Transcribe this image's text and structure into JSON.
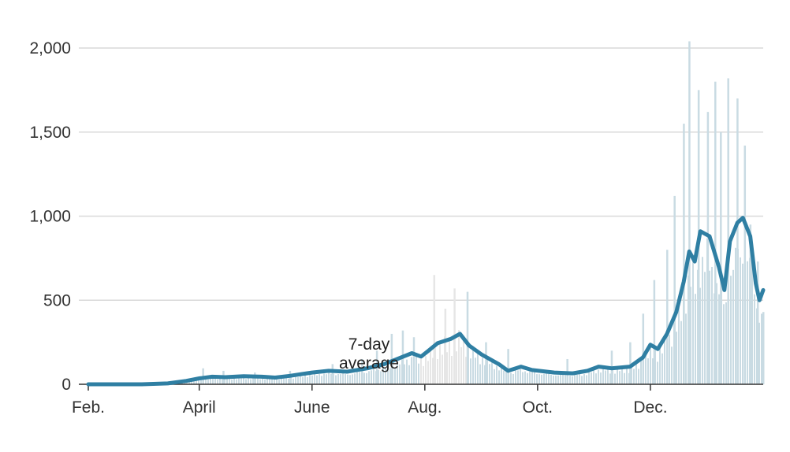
{
  "chart_data": {
    "type": "bar",
    "title": "",
    "xlabel": "",
    "ylabel": "",
    "ylim": [
      0,
      2000
    ],
    "y_ticks": [
      "0",
      "500",
      "1,000",
      "1,500",
      "2,000"
    ],
    "y_tick_values": [
      0,
      500,
      1000,
      1500,
      2000
    ],
    "x_tick_labels": [
      "Feb.",
      "April",
      "June",
      "Aug.",
      "Oct.",
      "Dec."
    ],
    "x_tick_dates": [
      "2020-02-01",
      "2020-04-01",
      "2020-06-01",
      "2020-08-01",
      "2020-10-01",
      "2020-12-01"
    ],
    "x_range": [
      "2020-02-01",
      "2021-01-31"
    ],
    "grid": "horizontal",
    "annotation": {
      "line1": "7-day",
      "line2": "average",
      "near": "2020-07-17"
    },
    "colors": {
      "bars": "#c9dbe3",
      "bars_shaded": "#e6e6e6",
      "line": "#2f7fa3",
      "grid": "#d9d9d9",
      "axis": "#333333"
    },
    "series": [
      {
        "type": "line",
        "values": [
          [
            "2020-02-01",
            0
          ],
          [
            "2020-02-15",
            0
          ],
          [
            "2020-03-01",
            0
          ],
          [
            "2020-03-15",
            5
          ],
          [
            "2020-03-25",
            20
          ],
          [
            "2020-04-01",
            35
          ],
          [
            "2020-04-08",
            45
          ],
          [
            "2020-04-15",
            42
          ],
          [
            "2020-04-25",
            48
          ],
          [
            "2020-05-05",
            45
          ],
          [
            "2020-05-12",
            40
          ],
          [
            "2020-05-20",
            50
          ],
          [
            "2020-06-01",
            70
          ],
          [
            "2020-06-10",
            80
          ],
          [
            "2020-06-20",
            75
          ],
          [
            "2020-07-01",
            95
          ],
          [
            "2020-07-10",
            120
          ],
          [
            "2020-07-17",
            150
          ],
          [
            "2020-07-25",
            185
          ],
          [
            "2020-07-30",
            165
          ],
          [
            "2020-08-03",
            200
          ],
          [
            "2020-08-08",
            245
          ],
          [
            "2020-08-15",
            270
          ],
          [
            "2020-08-20",
            300
          ],
          [
            "2020-08-25",
            230
          ],
          [
            "2020-09-01",
            175
          ],
          [
            "2020-09-10",
            120
          ],
          [
            "2020-09-15",
            80
          ],
          [
            "2020-09-22",
            105
          ],
          [
            "2020-09-28",
            85
          ],
          [
            "2020-10-10",
            70
          ],
          [
            "2020-10-20",
            65
          ],
          [
            "2020-10-28",
            80
          ],
          [
            "2020-11-03",
            105
          ],
          [
            "2020-11-10",
            95
          ],
          [
            "2020-11-20",
            105
          ],
          [
            "2020-11-27",
            160
          ],
          [
            "2020-12-01",
            235
          ],
          [
            "2020-12-05",
            210
          ],
          [
            "2020-12-10",
            300
          ],
          [
            "2020-12-15",
            430
          ],
          [
            "2020-12-19",
            610
          ],
          [
            "2020-12-22",
            790
          ],
          [
            "2020-12-25",
            730
          ],
          [
            "2020-12-28",
            910
          ],
          [
            "2021-01-02",
            880
          ],
          [
            "2021-01-07",
            700
          ],
          [
            "2021-01-10",
            560
          ],
          [
            "2021-01-13",
            850
          ],
          [
            "2021-01-17",
            960
          ],
          [
            "2021-01-20",
            990
          ],
          [
            "2021-01-24",
            880
          ],
          [
            "2021-01-27",
            600
          ],
          [
            "2021-01-29",
            500
          ],
          [
            "2021-01-31",
            560
          ]
        ]
      },
      {
        "type": "bar",
        "values": [
          [
            "2020-03-25",
            30
          ],
          [
            "2020-04-03",
            95
          ],
          [
            "2020-04-14",
            80
          ],
          [
            "2020-05-01",
            70
          ],
          [
            "2020-05-20",
            80
          ],
          [
            "2020-06-12",
            120
          ],
          [
            "2020-06-28",
            150
          ],
          [
            "2020-07-06",
            200
          ],
          [
            "2020-07-14",
            300
          ],
          [
            "2020-07-20",
            320
          ],
          [
            "2020-07-26",
            280
          ],
          [
            "2020-08-06",
            650
          ],
          [
            "2020-08-12",
            450
          ],
          [
            "2020-08-17",
            570
          ],
          [
            "2020-08-24",
            550
          ],
          [
            "2020-09-03",
            250
          ],
          [
            "2020-09-15",
            210
          ],
          [
            "2020-10-17",
            150
          ],
          [
            "2020-11-10",
            200
          ],
          [
            "2020-11-20",
            250
          ],
          [
            "2020-11-27",
            420
          ],
          [
            "2020-12-03",
            620
          ],
          [
            "2020-12-10",
            800
          ],
          [
            "2020-12-14",
            1120
          ],
          [
            "2020-12-19",
            1550
          ],
          [
            "2020-12-22",
            2040
          ],
          [
            "2020-12-27",
            1750
          ],
          [
            "2021-01-01",
            1620
          ],
          [
            "2021-01-05",
            1800
          ],
          [
            "2021-01-08",
            1500
          ],
          [
            "2021-01-12",
            1820
          ],
          [
            "2021-01-17",
            1700
          ],
          [
            "2021-01-21",
            1420
          ],
          [
            "2021-01-24",
            950
          ],
          [
            "2021-01-28",
            730
          ],
          [
            "2021-01-31",
            430
          ]
        ]
      }
    ]
  }
}
